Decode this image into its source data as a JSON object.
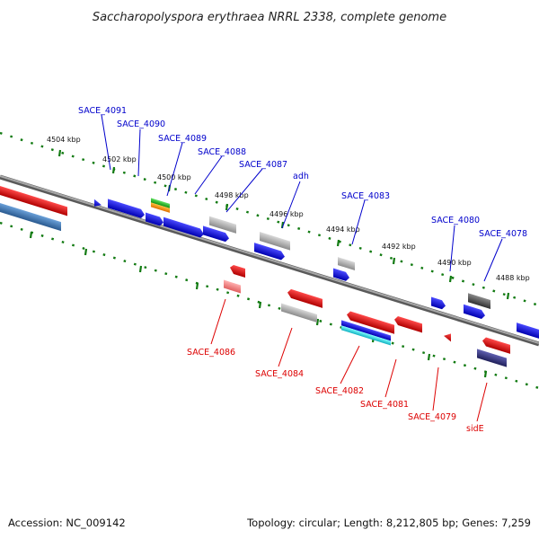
{
  "title": "Saccharopolyspora erythraea NRRL 2338, complete genome",
  "accession": "Accession: NC_009142",
  "topology": "Topology: circular; Length: 8,212,805 bp; Genes: 7,259",
  "colors": {
    "forward_label": "#0000cc",
    "reverse_label": "#dd0000",
    "backbone": "#808080",
    "tick": "#117a11",
    "forward_gene": "#0000dd",
    "reverse_gene": "#ee0000",
    "grey_gene": "#b0b0b0"
  },
  "kbp_ticks": [
    "4504 kbp",
    "4502 kbp",
    "4500 kbp",
    "4498 kbp",
    "4496 kbp",
    "4494 kbp",
    "4492 kbp",
    "4490 kbp",
    "4488 kbp"
  ],
  "forward_labels": [
    "SACE_4091",
    "SACE_4090",
    "SACE_4089",
    "SACE_4088",
    "SACE_4087",
    "adh",
    "SACE_4083",
    "SACE_4080",
    "SACE_4078"
  ],
  "reverse_labels": [
    "SACE_4086",
    "SACE_4084",
    "SACE_4082",
    "SACE_4081",
    "SACE_4079",
    "sidE"
  ]
}
